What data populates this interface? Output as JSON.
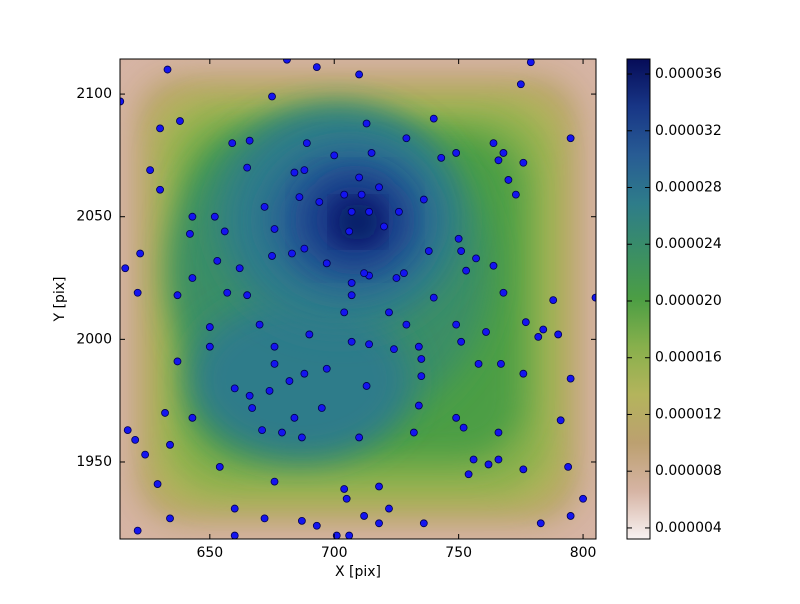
{
  "chart_data": {
    "type": "scatter",
    "xlabel": "X [pix]",
    "ylabel": "Y [pix]",
    "xlim": [
      613.9,
      805.2
    ],
    "ylim": [
      1918.6,
      2114.3
    ],
    "xticks": [
      650,
      700,
      750,
      800
    ],
    "yticks": [
      1950,
      2000,
      2050,
      2100
    ],
    "color": "#1414f0",
    "edgecolor": "#000050",
    "x": [
      614,
      633,
      681,
      693,
      710,
      675,
      779,
      775,
      740,
      713,
      638,
      630,
      795,
      729,
      689,
      666,
      665,
      659,
      626,
      630,
      764,
      768,
      749,
      700,
      715,
      688,
      684,
      710,
      743,
      766,
      770,
      776,
      773,
      736,
      718,
      686,
      672,
      694,
      711,
      704,
      706,
      707,
      714,
      720,
      726,
      643,
      652,
      676,
      688,
      683,
      675,
      656,
      642,
      622,
      653,
      662,
      714,
      725,
      728,
      712,
      738,
      750,
      753,
      751,
      757,
      697,
      707,
      707,
      764,
      616,
      643,
      621,
      657,
      665,
      637,
      740,
      722,
      704,
      729,
      777,
      784,
      782,
      790,
      788,
      768,
      761,
      749,
      751,
      707,
      714,
      724,
      734,
      690,
      670,
      650,
      637,
      650,
      676,
      676,
      660,
      674,
      688,
      697,
      682,
      735,
      758,
      767,
      776,
      795,
      666,
      667,
      713,
      735,
      632,
      643,
      684,
      695,
      734,
      749,
      752,
      671,
      679,
      687,
      710,
      732,
      766,
      791,
      617,
      620,
      624,
      634,
      654,
      676,
      756,
      762,
      766,
      754,
      776,
      794,
      629,
      704,
      718,
      705,
      722,
      712,
      687,
      693,
      718,
      736,
      634,
      660,
      672,
      621,
      660,
      701,
      706,
      783,
      795,
      800,
      805
    ],
    "values": [
      2097,
      2110,
      2114,
      2111,
      2108,
      2099,
      2113,
      2104,
      2090,
      2088,
      2089,
      2086,
      2082,
      2082,
      2080,
      2081,
      2070,
      2080,
      2069,
      2061,
      2080,
      2076,
      2076,
      2075,
      2076,
      2069,
      2068,
      2066,
      2074,
      2073,
      2065,
      2072,
      2059,
      2057,
      2062,
      2058,
      2054,
      2056,
      2059,
      2059,
      2044,
      2052,
      2052,
      2046,
      2052,
      2050,
      2050,
      2045,
      2037,
      2035,
      2034,
      2044,
      2043,
      2035,
      2032,
      2029,
      2026,
      2025,
      2027,
      2027,
      2036,
      2041,
      2028,
      2036,
      2033,
      2031,
      2023,
      2018,
      2030,
      2029,
      2025,
      2019,
      2019,
      2018,
      2018,
      2017,
      2011,
      2011,
      2006,
      2007,
      2004,
      2001,
      2002,
      2016,
      2019,
      2003,
      2006,
      1999,
      1999,
      1998,
      1996,
      1997,
      2002,
      2006,
      2005,
      1991,
      1997,
      1997,
      1990,
      1980,
      1979,
      1986,
      1988,
      1983,
      1992,
      1990,
      1990,
      1986,
      1984,
      1977,
      1972,
      1981,
      1985,
      1970,
      1968,
      1968,
      1972,
      1973,
      1968,
      1964,
      1963,
      1962,
      1960,
      1960,
      1962,
      1962,
      1967,
      1963,
      1959,
      1953,
      1957,
      1948,
      1942,
      1951,
      1949,
      1951,
      1945,
      1947,
      1948,
      1941,
      1939,
      1940,
      1935,
      1931,
      1928,
      1926,
      1924,
      1925,
      1925,
      1927,
      1931,
      1927,
      1922,
      1920,
      1920,
      1920,
      1925,
      1928,
      1935,
      2017
    ],
    "colorbar": {
      "clim": [
        3.22e-06,
        3.706e-05
      ],
      "ticks": [
        {
          "value": 4e-06,
          "label": "0.000004"
        },
        {
          "value": 8e-06,
          "label": "0.000008"
        },
        {
          "value": 1.2e-05,
          "label": "0.000012"
        },
        {
          "value": 1.6e-05,
          "label": "0.000016"
        },
        {
          "value": 2e-05,
          "label": "0.000020"
        },
        {
          "value": 2.4e-05,
          "label": "0.000024"
        },
        {
          "value": 2.8e-05,
          "label": "0.000028"
        },
        {
          "value": 3.2e-05,
          "label": "0.000032"
        },
        {
          "value": 3.6e-05,
          "label": "0.000036"
        }
      ],
      "colormap": [
        "#f8f2f2",
        "#d6b4a4",
        "#bca070",
        "#b4b45c",
        "#88b04c",
        "#4c9e44",
        "#3a8e66",
        "#2e7c8a",
        "#285c94",
        "#183686",
        "#060c58"
      ]
    }
  }
}
